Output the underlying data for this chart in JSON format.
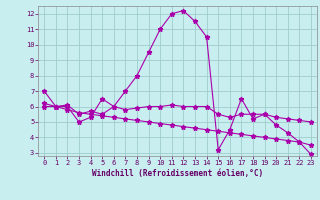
{
  "title": "",
  "xlabel": "Windchill (Refroidissement éolien,°C)",
  "ylabel": "",
  "background_color": "#c8eef0",
  "line_color": "#aa00aa",
  "grid_color": "#a0cccc",
  "xlim": [
    -0.5,
    23.5
  ],
  "ylim": [
    2.8,
    12.5
  ],
  "yticks": [
    3,
    4,
    5,
    6,
    7,
    8,
    9,
    10,
    11,
    12
  ],
  "xticks": [
    0,
    1,
    2,
    3,
    4,
    5,
    6,
    7,
    8,
    9,
    10,
    11,
    12,
    13,
    14,
    15,
    16,
    17,
    18,
    19,
    20,
    21,
    22,
    23
  ],
  "series1_x": [
    0,
    1,
    2,
    3,
    4,
    5,
    6,
    7,
    8,
    9,
    10,
    11,
    12,
    13,
    14,
    15,
    16,
    17,
    18,
    19,
    20,
    21,
    22,
    23
  ],
  "series1_y": [
    7.0,
    6.0,
    6.0,
    5.0,
    5.3,
    6.5,
    6.0,
    7.0,
    8.0,
    9.5,
    11.0,
    12.0,
    12.2,
    11.5,
    10.5,
    3.2,
    4.5,
    6.5,
    5.2,
    5.5,
    4.8,
    4.3,
    3.7,
    2.9
  ],
  "series2_x": [
    0,
    1,
    2,
    3,
    4,
    5,
    6,
    7,
    8,
    9,
    10,
    11,
    12,
    13,
    14,
    15,
    16,
    17,
    18,
    19,
    20,
    21,
    22,
    23
  ],
  "series2_y": [
    6.0,
    6.0,
    6.1,
    5.5,
    5.7,
    5.5,
    6.0,
    5.8,
    5.9,
    6.0,
    6.0,
    6.1,
    6.0,
    6.0,
    6.0,
    5.5,
    5.3,
    5.5,
    5.5,
    5.5,
    5.3,
    5.2,
    5.1,
    5.0
  ],
  "series3_x": [
    0,
    1,
    2,
    3,
    4,
    5,
    6,
    7,
    8,
    9,
    10,
    11,
    12,
    13,
    14,
    15,
    16,
    17,
    18,
    19,
    20,
    21,
    22,
    23
  ],
  "series3_y": [
    6.2,
    6.0,
    5.8,
    5.6,
    5.5,
    5.4,
    5.3,
    5.2,
    5.1,
    5.0,
    4.9,
    4.8,
    4.7,
    4.6,
    4.5,
    4.4,
    4.3,
    4.2,
    4.1,
    4.0,
    3.9,
    3.8,
    3.7,
    3.5
  ],
  "tick_fontsize": 5,
  "xlabel_fontsize": 5.5,
  "tick_color": "#660066",
  "xlabel_color": "#660066"
}
